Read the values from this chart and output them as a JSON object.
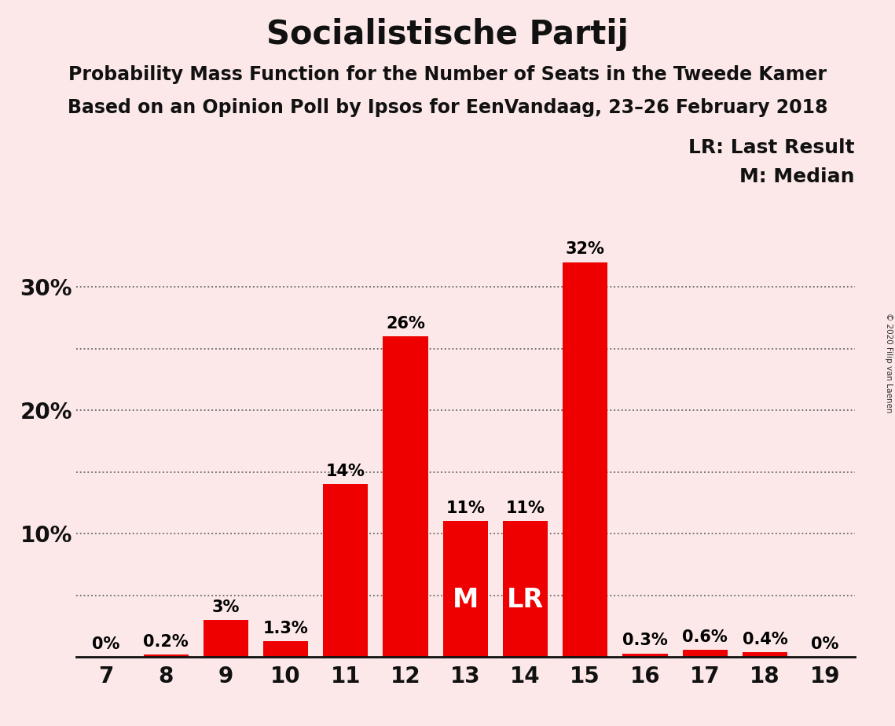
{
  "title": "Socialistische Partij",
  "subtitle1": "Probability Mass Function for the Number of Seats in the Tweede Kamer",
  "subtitle2": "Based on an Opinion Poll by Ipsos for EenVandaag, 23–26 February 2018",
  "copyright": "© 2020 Filip van Laenen",
  "legend_lr": "LR: Last Result",
  "legend_m": "M: Median",
  "background_color": "#fce8e8",
  "bar_color": "#ee0000",
  "seats": [
    7,
    8,
    9,
    10,
    11,
    12,
    13,
    14,
    15,
    16,
    17,
    18,
    19
  ],
  "probabilities": [
    0.0,
    0.2,
    3.0,
    1.3,
    14.0,
    26.0,
    11.0,
    11.0,
    32.0,
    0.3,
    0.6,
    0.4,
    0.0
  ],
  "labels": [
    "0%",
    "0.2%",
    "3%",
    "1.3%",
    "14%",
    "26%",
    "11%",
    "11%",
    "32%",
    "0.3%",
    "0.6%",
    "0.4%",
    "0%"
  ],
  "median_seat": 13,
  "lr_seat": 14,
  "ylim": [
    0,
    35
  ],
  "yticks": [
    10,
    20,
    30
  ],
  "ytick_labels": [
    "10%",
    "20%",
    "30%"
  ],
  "grid_lines": [
    5,
    10,
    15,
    20,
    25,
    30
  ],
  "title_fontsize": 30,
  "subtitle_fontsize": 17,
  "label_fontsize": 15,
  "axis_fontsize": 20,
  "legend_fontsize": 18
}
